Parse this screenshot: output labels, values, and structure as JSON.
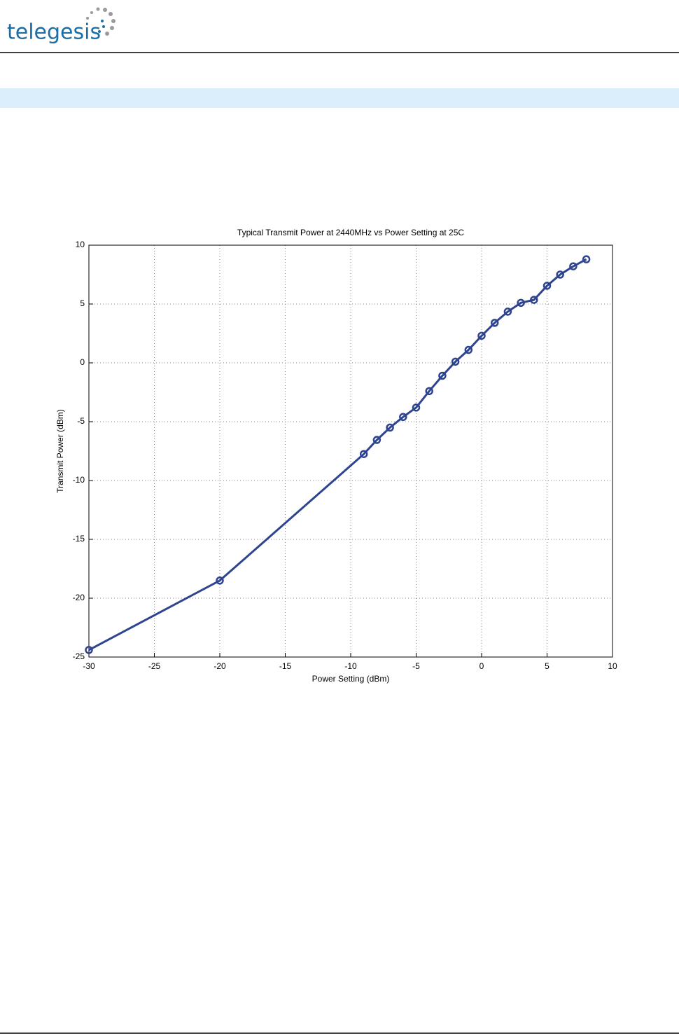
{
  "header": {
    "logo": "telegesis"
  },
  "chart_data": {
    "type": "line",
    "title": "Typical Transmit Power at 2440MHz vs Power Setting at 25C",
    "x_label": "Power Setting (dBm)",
    "y_label": "Transmit Power (dBm)",
    "x": [
      -30,
      -20,
      -9,
      -8,
      -7,
      -6,
      -5,
      -4,
      -3,
      -2,
      -1,
      0,
      1,
      2,
      3,
      4,
      5,
      6,
      7,
      8
    ],
    "values": [
      -24.4,
      -18.5,
      -7.75,
      -6.55,
      -5.5,
      -4.6,
      -3.8,
      -2.4,
      -1.1,
      0.1,
      1.1,
      2.3,
      3.4,
      4.35,
      5.1,
      5.35,
      6.55,
      7.5,
      8.2,
      8.8
    ],
    "color": "#2e4490",
    "xlim": [
      -30,
      10
    ],
    "ylim": [
      -25,
      10
    ],
    "xticks": [
      -30,
      -25,
      -20,
      -15,
      -10,
      -5,
      0,
      5,
      10
    ],
    "yticks": [
      -25,
      -20,
      -15,
      -10,
      -5,
      0,
      5,
      10
    ],
    "grid": true,
    "markers": true
  }
}
